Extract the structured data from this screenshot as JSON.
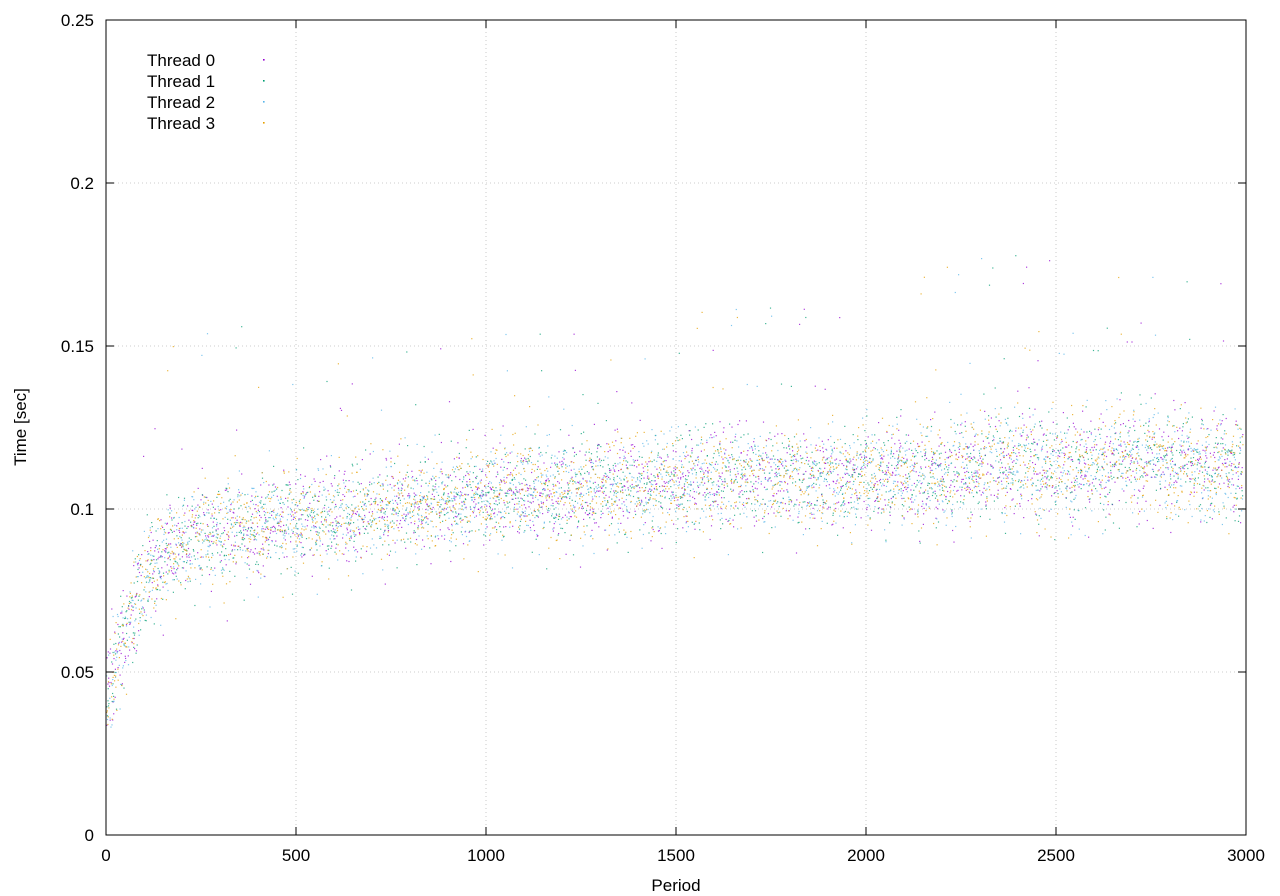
{
  "chart_data": {
    "type": "scatter",
    "title": "",
    "xlabel": "Period",
    "ylabel": "Time [sec]",
    "xlim": [
      0,
      3000
    ],
    "ylim": [
      0,
      0.25
    ],
    "xticks": [
      0,
      500,
      1000,
      1500,
      2000,
      2500,
      3000
    ],
    "xtick_labels": [
      "0",
      "500",
      "1000",
      "1500",
      "2000",
      "2500",
      "3000"
    ],
    "yticks": [
      0,
      0.05,
      0.1,
      0.15,
      0.2,
      0.25
    ],
    "ytick_labels": [
      "0",
      "0.05",
      "0.1",
      "0.15",
      "0.2",
      "0.25"
    ],
    "grid": true,
    "legend_position": "top-left",
    "trend": {
      "x": [
        0,
        25,
        50,
        75,
        100,
        150,
        200,
        300,
        400,
        500,
        600,
        700,
        800,
        900,
        1000,
        1100,
        1200,
        1300,
        1400,
        1500,
        1600,
        1700,
        1800,
        1900,
        2000,
        2100,
        2200,
        2300,
        2400,
        2500,
        2600,
        2700,
        2800,
        2900,
        3000
      ],
      "y": [
        0.042,
        0.052,
        0.063,
        0.072,
        0.079,
        0.086,
        0.09,
        0.093,
        0.095,
        0.096,
        0.097,
        0.099,
        0.101,
        0.102,
        0.104,
        0.105,
        0.104,
        0.106,
        0.106,
        0.108,
        0.109,
        0.11,
        0.11,
        0.109,
        0.111,
        0.111,
        0.11,
        0.113,
        0.114,
        0.112,
        0.113,
        0.116,
        0.114,
        0.113,
        0.113
      ]
    },
    "series": [
      {
        "name": "Thread 0",
        "color": "#9400d3"
      },
      {
        "name": "Thread 1",
        "color": "#009e73"
      },
      {
        "name": "Thread 2",
        "color": "#56b4e9"
      },
      {
        "name": "Thread 3",
        "color": "#e69f00"
      }
    ]
  }
}
